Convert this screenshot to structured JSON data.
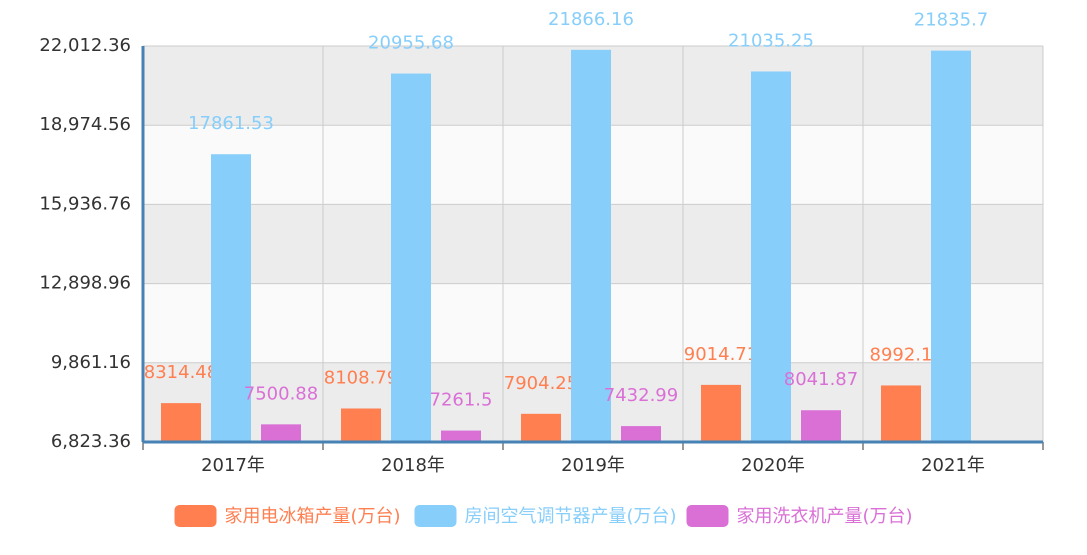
{
  "chart_data": {
    "type": "bar",
    "categories": [
      "2017年",
      "2018年",
      "2019年",
      "2020年",
      "2021年"
    ],
    "series": [
      {
        "name": "家用电冰箱产量(万台)",
        "color": "#ff7f50",
        "values": [
          8314.48,
          8108.79,
          7904.25,
          9014.71,
          8992.1
        ]
      },
      {
        "name": "房间空气调节器产量(万台)",
        "color": "#87cefa",
        "values": [
          17861.53,
          20955.68,
          21866.16,
          21035.25,
          21835.7
        ]
      },
      {
        "name": "家用洗衣机产量(万台)",
        "color": "#da70d6",
        "values": [
          7500.88,
          7261.5,
          7432.99,
          8041.87,
          null
        ]
      }
    ],
    "ylim": [
      6823.36,
      22012.36
    ],
    "yticks": [
      {
        "value": 6823.36,
        "label": "6,823.36"
      },
      {
        "value": 9861.16,
        "label": "9,861.16"
      },
      {
        "value": 12898.96,
        "label": "12,898.96"
      },
      {
        "value": 15936.76,
        "label": "15,936.76"
      },
      {
        "value": 18974.56,
        "label": "18,974.56"
      },
      {
        "value": 22012.36,
        "label": "22,012.36"
      }
    ],
    "grid": true
  }
}
